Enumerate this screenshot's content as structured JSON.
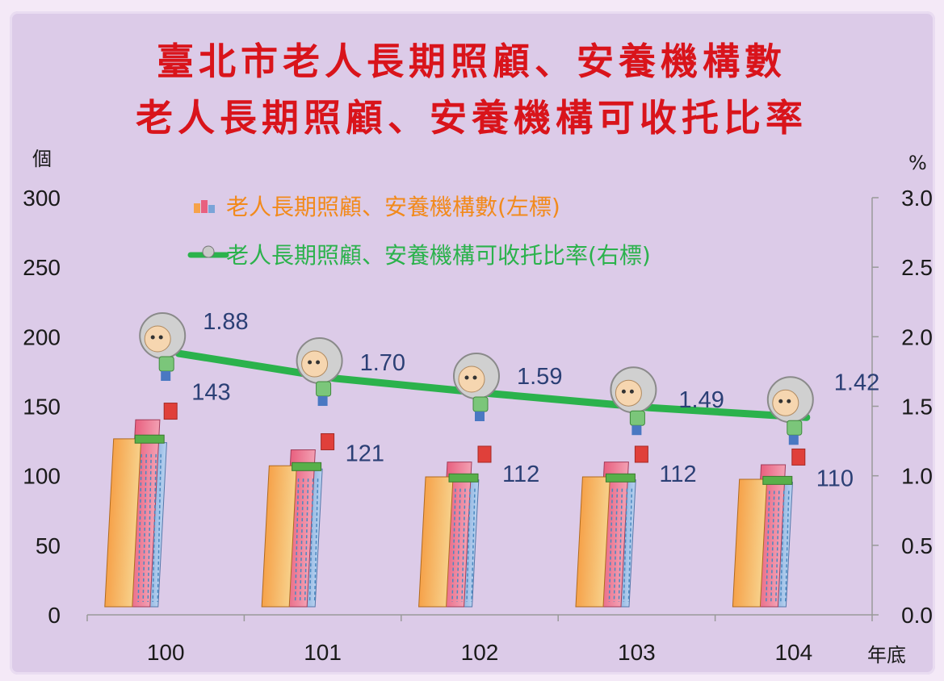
{
  "title_lines": [
    "臺北市老人長期照顧、安養機構數",
    "老人長期照顧、安養機構可收托比率"
  ],
  "left_unit": "個",
  "right_unit": "%",
  "x_unit": "年底",
  "colors": {
    "title": "#d9141b",
    "legend_bars": "#f28a1c",
    "legend_line": "#2bb24c",
    "line": "#2bb24c",
    "labels": "#2b3f75"
  },
  "icons": {
    "bar_marker": "building-icon",
    "line_marker": "elderly-person-icon"
  },
  "chart_data": {
    "type": "bar+line",
    "categories": [
      "100",
      "101",
      "102",
      "103",
      "104"
    ],
    "series": [
      {
        "name": "老人長期照顧、安養機構數(左標)",
        "type": "bar",
        "axis": "left",
        "values": [
          143,
          121,
          112,
          112,
          110
        ]
      },
      {
        "name": "老人長期照顧、安養機構可收托比率(右標)",
        "type": "line",
        "axis": "right",
        "values": [
          1.88,
          1.7,
          1.59,
          1.49,
          1.42
        ]
      }
    ],
    "ylim_left": [
      0,
      300
    ],
    "yticks_left": [
      "0",
      "50",
      "100",
      "150",
      "200",
      "250",
      "300"
    ],
    "ylim_right": [
      0,
      3.0
    ],
    "yticks_right": [
      "0.0",
      "0.5",
      "1.0",
      "1.5",
      "2.0",
      "2.5",
      "3.0"
    ],
    "data_labels_bar": [
      "143",
      "121",
      "112",
      "112",
      "110"
    ],
    "data_labels_line": [
      "1.88",
      "1.70",
      "1.59",
      "1.49",
      "1.42"
    ],
    "grid": false,
    "legend_position": "top"
  }
}
